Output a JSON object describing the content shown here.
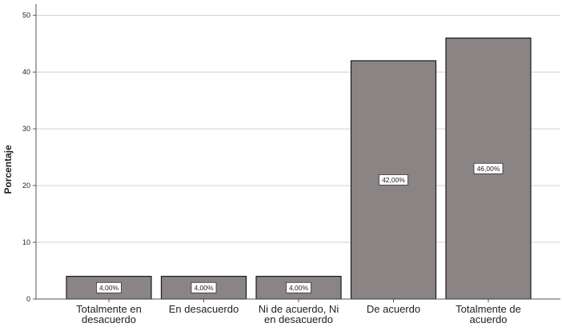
{
  "chart_data": {
    "type": "bar",
    "ylabel": "Porcentaje",
    "xlabel": "",
    "ylim": [
      0,
      52
    ],
    "yticks": [
      0,
      10,
      20,
      30,
      40,
      50
    ],
    "grid": true,
    "categories": [
      [
        "Totalmente en",
        "desacuerdo"
      ],
      [
        "En desacuerdo"
      ],
      [
        "Ni de acuerdo, Ni",
        "en desacuerdo"
      ],
      [
        "De acuerdo"
      ],
      [
        "Totalmente de",
        "acuerdo"
      ]
    ],
    "values": [
      4,
      4,
      4,
      42,
      46
    ],
    "data_labels": [
      "4,00%",
      "4,00%",
      "4,00%",
      "42,00%",
      "46,00%"
    ]
  },
  "colors": {
    "bar_fill": "#8b8484",
    "bar_stroke": "#1a1a1a",
    "grid": "#d0d0d0",
    "axis": "#555555",
    "label_box": "#ffffff"
  }
}
